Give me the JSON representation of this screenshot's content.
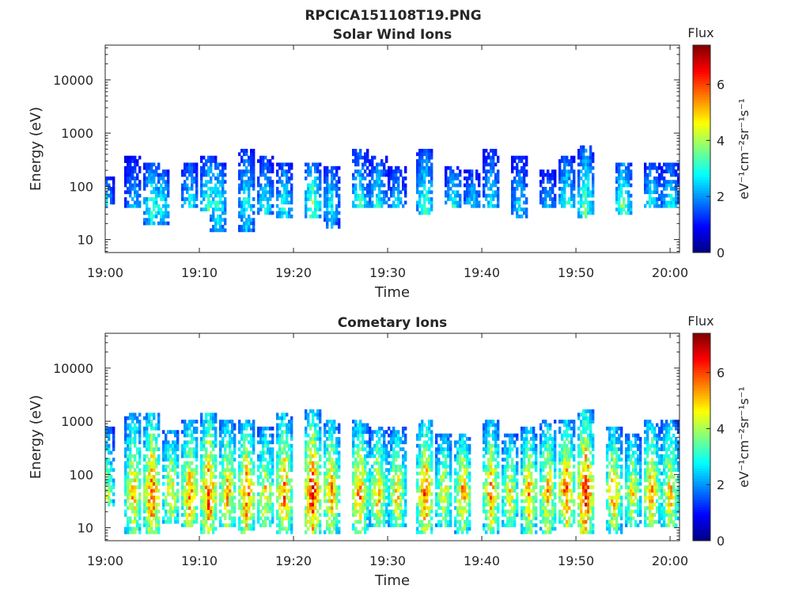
{
  "figure_title": "RPCICA151108T19.PNG",
  "colormap": "jet",
  "chart_data": [
    {
      "type": "heatmap",
      "title": "Solar Wind Ions",
      "xlabel": "Time",
      "ylabel": "Energy (eV)",
      "x_range": [
        "19:00",
        "20:01"
      ],
      "x_ticks": [
        "19:00",
        "19:10",
        "19:20",
        "19:30",
        "19:40",
        "19:50",
        "20:00"
      ],
      "y_scale": "log",
      "y_range": [
        5.7,
        45000
      ],
      "y_ticks": [
        "10",
        "100",
        "1000",
        "10000"
      ],
      "colorbar": {
        "title": "Flux",
        "label": "eV⁻¹cm⁻²sr⁻¹s⁻¹",
        "range": [
          0,
          7.4
        ],
        "ticks": [
          "0",
          "2",
          "4",
          "6"
        ]
      },
      "bursts": [
        {
          "t": "19:00",
          "elo": 40,
          "ehi": 150,
          "peak": 2.8
        },
        {
          "t": "19:03",
          "elo": 40,
          "ehi": 400,
          "peak": 2.5
        },
        {
          "t": "19:05",
          "elo": 20,
          "ehi": 300,
          "peak": 3.6
        },
        {
          "t": "19:06",
          "elo": 20,
          "ehi": 200,
          "peak": 3.2
        },
        {
          "t": "19:09",
          "elo": 40,
          "ehi": 300,
          "peak": 3.0
        },
        {
          "t": "19:11",
          "elo": 35,
          "ehi": 400,
          "peak": 3.6
        },
        {
          "t": "19:12",
          "elo": 15,
          "ehi": 300,
          "peak": 3.4
        },
        {
          "t": "19:15",
          "elo": 15,
          "ehi": 500,
          "peak": 3.2
        },
        {
          "t": "19:17",
          "elo": 30,
          "ehi": 400,
          "peak": 3.0
        },
        {
          "t": "19:19",
          "elo": 25,
          "ehi": 300,
          "peak": 3.2
        },
        {
          "t": "19:22",
          "elo": 25,
          "ehi": 300,
          "peak": 4.0
        },
        {
          "t": "19:24",
          "elo": 15,
          "ehi": 250,
          "peak": 3.0
        },
        {
          "t": "19:27",
          "elo": 40,
          "ehi": 500,
          "peak": 3.4
        },
        {
          "t": "19:29",
          "elo": 40,
          "ehi": 400,
          "peak": 3.2
        },
        {
          "t": "19:31",
          "elo": 40,
          "ehi": 250,
          "peak": 2.8
        },
        {
          "t": "19:34",
          "elo": 30,
          "ehi": 500,
          "peak": 3.6
        },
        {
          "t": "19:37",
          "elo": 40,
          "ehi": 250,
          "peak": 3.2
        },
        {
          "t": "19:39",
          "elo": 40,
          "ehi": 200,
          "peak": 2.8
        },
        {
          "t": "19:41",
          "elo": 40,
          "ehi": 500,
          "peak": 3.0
        },
        {
          "t": "19:44",
          "elo": 25,
          "ehi": 400,
          "peak": 2.8
        },
        {
          "t": "19:47",
          "elo": 40,
          "ehi": 200,
          "peak": 2.6
        },
        {
          "t": "19:49",
          "elo": 40,
          "ehi": 400,
          "peak": 3.4
        },
        {
          "t": "19:51",
          "elo": 25,
          "ehi": 600,
          "peak": 3.8
        },
        {
          "t": "19:55",
          "elo": 30,
          "ehi": 300,
          "peak": 4.0
        },
        {
          "t": "19:58",
          "elo": 40,
          "ehi": 300,
          "peak": 3.2
        },
        {
          "t": "20:00",
          "elo": 40,
          "ehi": 300,
          "peak": 3.2
        }
      ]
    },
    {
      "type": "heatmap",
      "title": "Cometary Ions",
      "xlabel": "Time",
      "ylabel": "Energy (eV)",
      "x_range": [
        "19:00",
        "20:01"
      ],
      "x_ticks": [
        "19:00",
        "19:10",
        "19:20",
        "19:30",
        "19:40",
        "19:50",
        "20:00"
      ],
      "y_scale": "log",
      "y_range": [
        5.7,
        45000
      ],
      "y_ticks": [
        "10",
        "100",
        "1000",
        "10000"
      ],
      "colorbar": {
        "title": "Flux",
        "label": "eV⁻¹cm⁻²sr⁻¹s⁻¹",
        "range": [
          0,
          7.4
        ],
        "ticks": [
          "0",
          "2",
          "4",
          "6"
        ]
      },
      "bursts": [
        {
          "t": "19:00",
          "elo": 25,
          "ehi": 800,
          "peak": 4.8
        },
        {
          "t": "19:03",
          "elo": 8,
          "ehi": 1500,
          "peak": 5.5
        },
        {
          "t": "19:05",
          "elo": 8,
          "ehi": 1500,
          "peak": 6.3
        },
        {
          "t": "19:07",
          "elo": 12,
          "ehi": 700,
          "peak": 5.2
        },
        {
          "t": "19:09",
          "elo": 10,
          "ehi": 1000,
          "peak": 5.8
        },
        {
          "t": "19:11",
          "elo": 8,
          "ehi": 1500,
          "peak": 6.5
        },
        {
          "t": "19:13",
          "elo": 10,
          "ehi": 1000,
          "peak": 5.6
        },
        {
          "t": "19:15",
          "elo": 8,
          "ehi": 1000,
          "peak": 6.2
        },
        {
          "t": "19:17",
          "elo": 10,
          "ehi": 800,
          "peak": 5.2
        },
        {
          "t": "19:19",
          "elo": 8,
          "ehi": 1500,
          "peak": 6.0
        },
        {
          "t": "19:22",
          "elo": 8,
          "ehi": 1600,
          "peak": 6.8
        },
        {
          "t": "19:24",
          "elo": 8,
          "ehi": 1000,
          "peak": 5.8
        },
        {
          "t": "19:27",
          "elo": 8,
          "ehi": 1000,
          "peak": 6.0
        },
        {
          "t": "19:29",
          "elo": 10,
          "ehi": 800,
          "peak": 5.5
        },
        {
          "t": "19:31",
          "elo": 10,
          "ehi": 800,
          "peak": 5.3
        },
        {
          "t": "19:34",
          "elo": 8,
          "ehi": 1000,
          "peak": 6.3
        },
        {
          "t": "19:36",
          "elo": 10,
          "ehi": 600,
          "peak": 5.0
        },
        {
          "t": "19:38",
          "elo": 8,
          "ehi": 600,
          "peak": 5.8
        },
        {
          "t": "19:41",
          "elo": 8,
          "ehi": 1000,
          "peak": 5.8
        },
        {
          "t": "19:43",
          "elo": 10,
          "ehi": 600,
          "peak": 5.0
        },
        {
          "t": "19:45",
          "elo": 8,
          "ehi": 800,
          "peak": 5.6
        },
        {
          "t": "19:47",
          "elo": 8,
          "ehi": 1000,
          "peak": 5.6
        },
        {
          "t": "19:49",
          "elo": 10,
          "ehi": 1000,
          "peak": 6.2
        },
        {
          "t": "19:51",
          "elo": 8,
          "ehi": 1600,
          "peak": 6.8
        },
        {
          "t": "19:54",
          "elo": 8,
          "ehi": 800,
          "peak": 5.6
        },
        {
          "t": "19:56",
          "elo": 10,
          "ehi": 600,
          "peak": 5.0
        },
        {
          "t": "19:58",
          "elo": 10,
          "ehi": 1000,
          "peak": 5.8
        },
        {
          "t": "20:00",
          "elo": 10,
          "ehi": 1000,
          "peak": 5.5
        }
      ]
    }
  ]
}
